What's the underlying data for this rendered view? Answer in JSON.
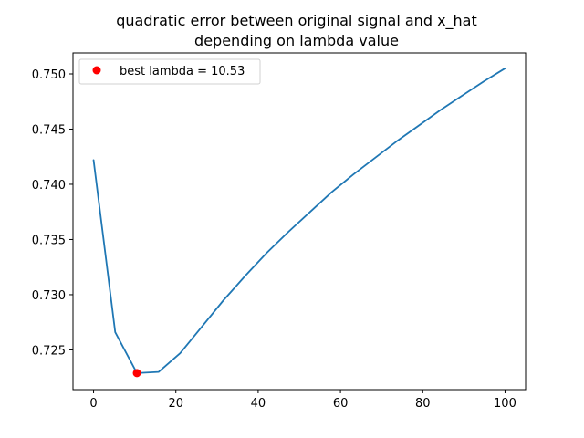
{
  "chart_data": {
    "type": "line",
    "title": [
      "quadratic error between original signal and x_hat",
      "depending on lambda value"
    ],
    "xlabel": "",
    "ylabel": "",
    "xlim": [
      -5,
      105
    ],
    "ylim": [
      0.7214,
      0.7519
    ],
    "x_ticks": [
      0,
      20,
      40,
      60,
      80,
      100
    ],
    "x_tick_labels": [
      "0",
      "20",
      "40",
      "60",
      "80",
      "100"
    ],
    "y_ticks": [
      0.725,
      0.73,
      0.735,
      0.74,
      0.745,
      0.75
    ],
    "y_tick_labels": [
      "0.725",
      "0.730",
      "0.735",
      "0.740",
      "0.745",
      "0.750"
    ],
    "grid": false,
    "legend": {
      "placement": "top-left",
      "entries": [
        {
          "label": "best lambda = 10.53",
          "marker": "circle",
          "color": "#ff0000"
        }
      ]
    },
    "series": [
      {
        "color": "#1f77b4",
        "x": [
          0,
          5.26,
          10.53,
          15.79,
          21.05,
          26.32,
          31.58,
          36.84,
          42.11,
          47.37,
          52.63,
          57.89,
          63.16,
          68.42,
          73.68,
          78.95,
          84.21,
          89.47,
          94.74,
          100
        ],
        "y": [
          0.7422,
          0.7266,
          0.7229,
          0.723,
          0.7247,
          0.7271,
          0.7295,
          0.7317,
          0.7338,
          0.7357,
          0.7375,
          0.7393,
          0.7409,
          0.7424,
          0.7439,
          0.7453,
          0.7467,
          0.748,
          0.7493,
          0.7505
        ]
      }
    ],
    "highlight_point": {
      "x": 10.53,
      "y": 0.7229,
      "color": "#ff0000"
    }
  }
}
